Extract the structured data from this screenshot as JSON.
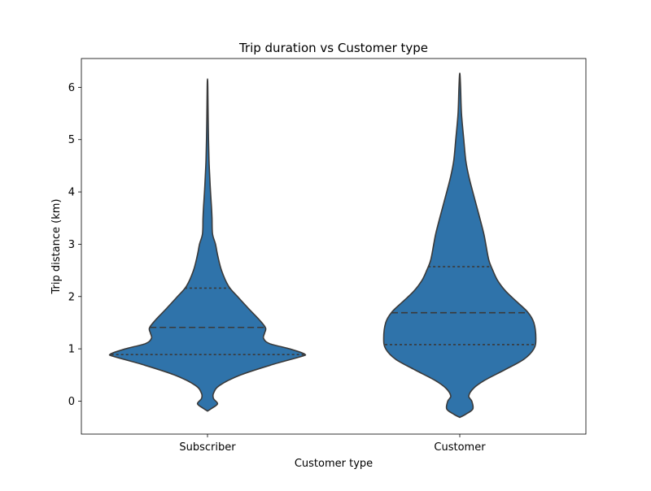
{
  "chart_data": {
    "type": "violin",
    "title": "Trip duration vs Customer type",
    "xlabel": "Customer type",
    "ylabel": "Trip distance (km)",
    "ylim": [
      -0.63,
      6.55
    ],
    "yticks": [
      0,
      1,
      2,
      3,
      4,
      5,
      6
    ],
    "ytick_labels": [
      "0",
      "1",
      "2",
      "3",
      "4",
      "5",
      "6"
    ],
    "grid": false,
    "colors": {
      "fill": "#2f73aa",
      "outline": "#3a3a3a"
    },
    "categories": [
      "Subscriber",
      "Customer"
    ],
    "series": [
      {
        "name": "Subscriber",
        "quartiles": {
          "q1": 0.89,
          "median": 1.41,
          "q3": 2.16
        },
        "density_profile": [
          [
            -0.19,
            0.0
          ],
          [
            -0.14,
            0.04
          ],
          [
            -0.05,
            0.1
          ],
          [
            0.05,
            0.06
          ],
          [
            0.15,
            0.06
          ],
          [
            0.3,
            0.12
          ],
          [
            0.5,
            0.33
          ],
          [
            0.7,
            0.65
          ],
          [
            0.85,
            0.93
          ],
          [
            0.9,
            0.97
          ],
          [
            1.0,
            0.82
          ],
          [
            1.1,
            0.62
          ],
          [
            1.2,
            0.56
          ],
          [
            1.3,
            0.57
          ],
          [
            1.4,
            0.58
          ],
          [
            1.55,
            0.52
          ],
          [
            1.75,
            0.42
          ],
          [
            2.0,
            0.3
          ],
          [
            2.2,
            0.21
          ],
          [
            2.5,
            0.14
          ],
          [
            2.8,
            0.1
          ],
          [
            3.0,
            0.08
          ],
          [
            3.2,
            0.05
          ],
          [
            3.5,
            0.045
          ],
          [
            3.7,
            0.04
          ],
          [
            4.0,
            0.03
          ],
          [
            4.3,
            0.022
          ],
          [
            4.6,
            0.015
          ],
          [
            5.0,
            0.01
          ],
          [
            5.5,
            0.006
          ],
          [
            6.0,
            0.003
          ],
          [
            6.16,
            0.0
          ]
        ]
      },
      {
        "name": "Customer",
        "quartiles": {
          "q1": 1.08,
          "median": 1.69,
          "q3": 2.57
        },
        "density_profile": [
          [
            -0.31,
            0.0
          ],
          [
            -0.25,
            0.06
          ],
          [
            -0.15,
            0.13
          ],
          [
            0.0,
            0.12
          ],
          [
            0.1,
            0.09
          ],
          [
            0.25,
            0.14
          ],
          [
            0.4,
            0.25
          ],
          [
            0.6,
            0.45
          ],
          [
            0.8,
            0.64
          ],
          [
            1.0,
            0.74
          ],
          [
            1.2,
            0.76
          ],
          [
            1.5,
            0.74
          ],
          [
            1.7,
            0.68
          ],
          [
            1.9,
            0.57
          ],
          [
            2.1,
            0.46
          ],
          [
            2.3,
            0.38
          ],
          [
            2.5,
            0.33
          ],
          [
            2.7,
            0.29
          ],
          [
            3.0,
            0.26
          ],
          [
            3.2,
            0.24
          ],
          [
            3.5,
            0.2
          ],
          [
            4.0,
            0.13
          ],
          [
            4.3,
            0.09
          ],
          [
            4.6,
            0.06
          ],
          [
            5.0,
            0.04
          ],
          [
            5.5,
            0.017
          ],
          [
            6.0,
            0.008
          ],
          [
            6.27,
            0.0
          ]
        ]
      }
    ]
  }
}
